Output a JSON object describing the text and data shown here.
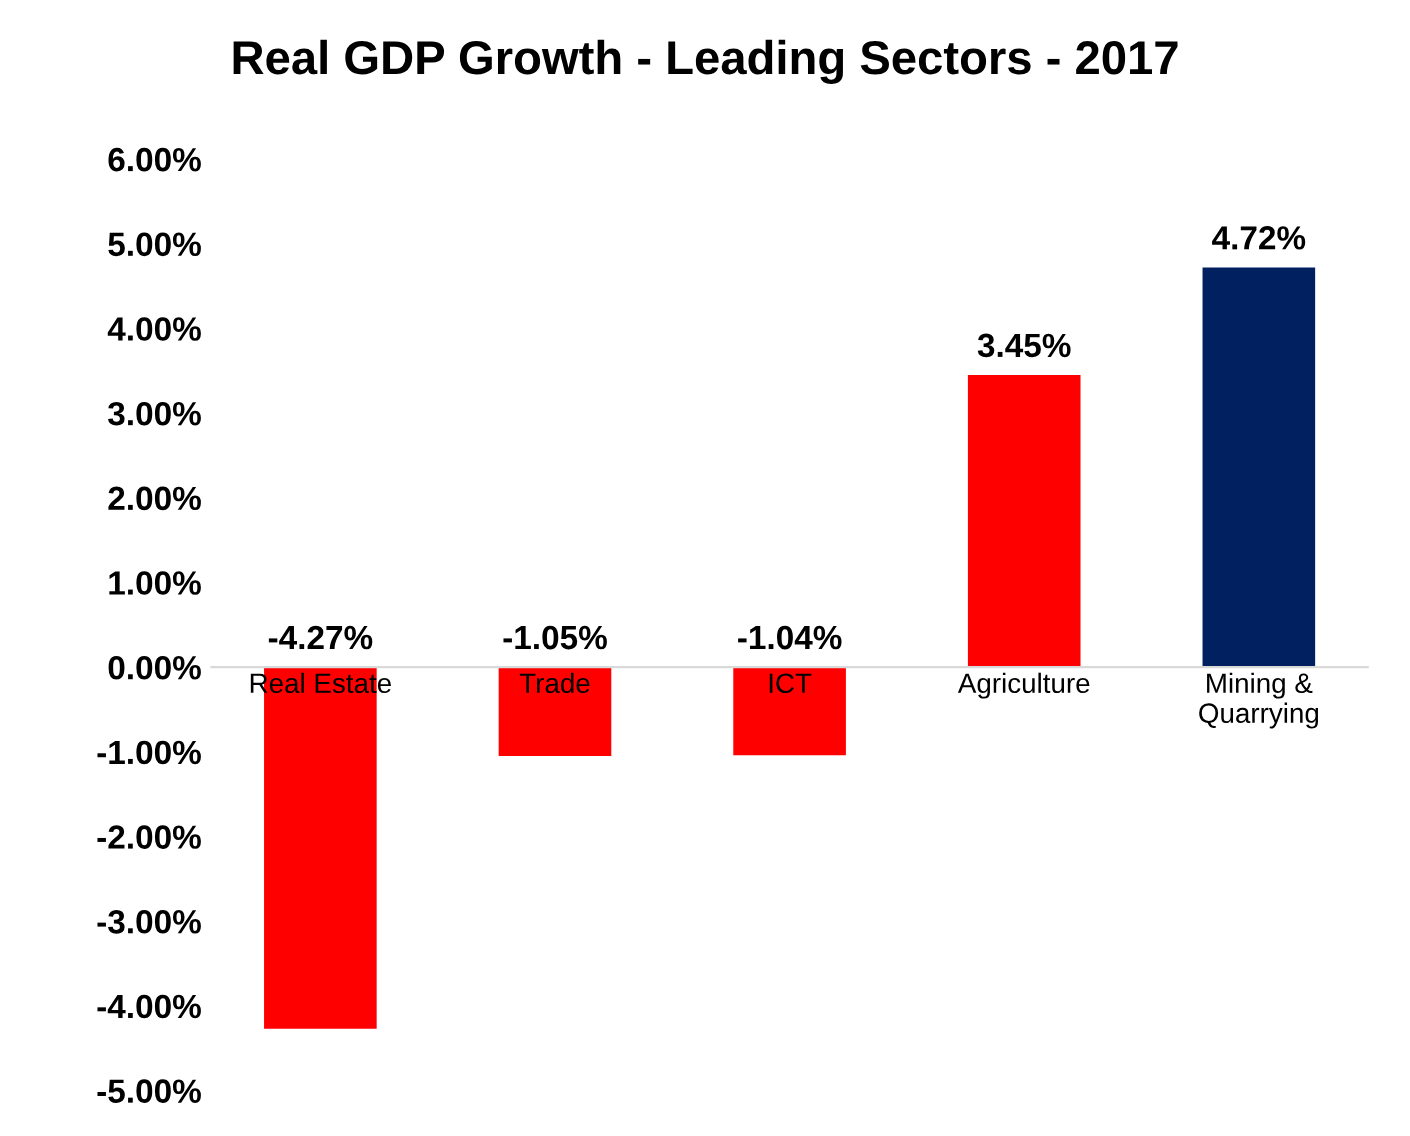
{
  "chart_data": {
    "type": "bar",
    "title": "Real GDP Growth - Leading Sectors - 2017",
    "categories": [
      "Real Estate",
      "Trade",
      "ICT",
      "Agriculture",
      "Mining &\nQuarrying"
    ],
    "values": [
      -4.27,
      -1.05,
      -1.04,
      3.45,
      4.72
    ],
    "colors": [
      "#ff0000",
      "#ff0000",
      "#ff0000",
      "#ff0000",
      "#002060"
    ],
    "value_labels": [
      "-4.27%",
      "-1.05%",
      "-1.04%",
      "3.45%",
      "4.72%"
    ],
    "ylim": [
      -5,
      6
    ],
    "yticks": [
      {
        "value": -5,
        "label": "-5.00%"
      },
      {
        "value": -4,
        "label": "-4.00%"
      },
      {
        "value": -3,
        "label": "-3.00%"
      },
      {
        "value": -2,
        "label": "-2.00%"
      },
      {
        "value": -1,
        "label": "-1.00%"
      },
      {
        "value": 0,
        "label": "0.00%"
      },
      {
        "value": 1,
        "label": "1.00%"
      },
      {
        "value": 2,
        "label": "2.00%"
      },
      {
        "value": 3,
        "label": "3.00%"
      },
      {
        "value": 4,
        "label": "4.00%"
      },
      {
        "value": 5,
        "label": "5.00%"
      },
      {
        "value": 6,
        "label": "6.00%"
      }
    ],
    "grid": false,
    "legend": false
  }
}
